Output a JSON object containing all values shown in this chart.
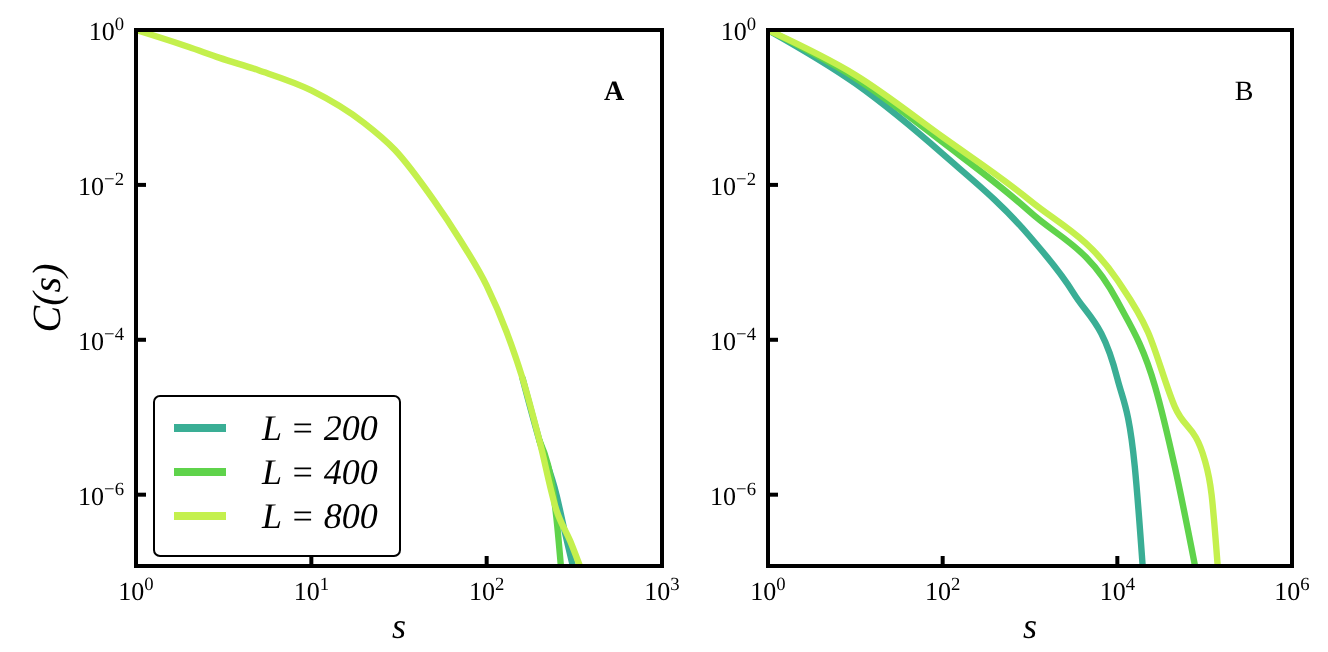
{
  "chart_data": [
    {
      "type": "line",
      "xlabel": "s",
      "ylabel": "C(s)",
      "log": "xy",
      "legend": "bottom left",
      "annotations": [
        "A"
      ],
      "xlim": [
        1,
        1000
      ],
      "ylim": [
        1.2e-07,
        1
      ],
      "xticks": [
        {
          "value": 1,
          "label": "10$^{0}$"
        },
        {
          "value": 10,
          "label": "10$^{1}$"
        },
        {
          "value": 100,
          "label": "10$^{2}$"
        },
        {
          "value": 1000,
          "label": "10$^{3}$"
        }
      ],
      "yticks": [
        {
          "value": 1,
          "label": "10$^{0}$"
        },
        {
          "value": 0.01,
          "label": "10$^{−2}$"
        },
        {
          "value": 0.0001,
          "label": "10$^{−4}$"
        },
        {
          "value": 1e-06,
          "label": "10$^{−6}$"
        }
      ],
      "series": [
        {
          "name": "L = 200",
          "color": "#3aae95",
          "x": [
            160,
            200,
            250,
            280,
            310
          ],
          "values": [
            3.2e-05,
            5e-06,
            1e-06,
            3.2e-07,
            1.2e-07
          ]
        },
        {
          "name": "L = 400",
          "color": "#5fd34b",
          "x": [
            200,
            250,
            265
          ],
          "values": [
            5e-06,
            5e-07,
            1.2e-07
          ]
        },
        {
          "name": "L = 800",
          "color": "#c4f04d",
          "x": [
            1,
            2,
            3,
            5,
            10,
            20,
            30,
            50,
            70,
            100,
            130,
            160,
            200,
            250,
            300,
            340
          ],
          "values": [
            1,
            0.603,
            0.437,
            0.302,
            0.166,
            0.063,
            0.0282,
            0.0063,
            0.002,
            0.0005,
            0.000126,
            3.2e-05,
            5e-06,
            6.3e-07,
            2.5e-07,
            1.2e-07
          ]
        }
      ]
    },
    {
      "type": "line",
      "xlabel": "s",
      "log": "xy",
      "annotations": [
        "B"
      ],
      "xlim": [
        1,
        1000000
      ],
      "ylim": [
        1.2e-07,
        1
      ],
      "xticks": [
        {
          "value": 1,
          "label": "10$^{0}$"
        },
        {
          "value": 100,
          "label": "10$^{2}$"
        },
        {
          "value": 10000,
          "label": "10$^{4}$"
        },
        {
          "value": 1000000,
          "label": "10$^{6}$"
        }
      ],
      "yticks": [
        {
          "value": 1,
          "label": "10$^{0}$"
        },
        {
          "value": 0.01,
          "label": "10$^{−2}$"
        },
        {
          "value": 0.0001,
          "label": "10$^{−4}$"
        },
        {
          "value": 1e-06,
          "label": "10$^{−6}$"
        }
      ],
      "series": [
        {
          "color": "#3aae95",
          "x": [
            1,
            10,
            100,
            1000,
            3162,
            10000,
            15850,
            19500
          ],
          "values": [
            1,
            0.204,
            0.0251,
            0.00214,
            0.000398,
            3.16e-05,
            2.29e-06,
            1.2e-07
          ]
        },
        {
          "color": "#5fd34b",
          "x": [
            1,
            10,
            100,
            1000,
            10000,
            27000,
            45700,
            77600
          ],
          "values": [
            1,
            0.24,
            0.0355,
            0.00447,
            0.000316,
            2.51e-05,
            2.24e-06,
            1.2e-07
          ]
        },
        {
          "color": "#c4f04d",
          "x": [
            1,
            10,
            100,
            1000,
            10000,
            22400,
            45700,
            100000,
            120000,
            141000
          ],
          "values": [
            1,
            0.263,
            0.0417,
            0.0063,
            0.00059,
            0.000126,
            1.35e-05,
            2.82e-06,
            1e-06,
            1.2e-07
          ]
        }
      ]
    }
  ]
}
